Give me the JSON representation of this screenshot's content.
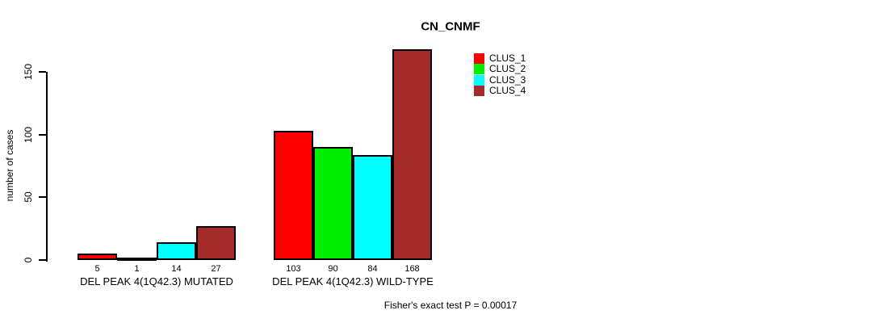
{
  "chart_data": {
    "type": "bar",
    "title": "CN_CNMF",
    "ylabel": "number of cases",
    "xlabel": "",
    "yticks": [
      0,
      50,
      100,
      150
    ],
    "ylim": [
      0,
      168
    ],
    "grid": false,
    "legend_position": "upper-right-inside",
    "categories": [
      "DEL PEAK 4(1Q42.3) MUTATED",
      "DEL PEAK 4(1Q42.3) WILD-TYPE"
    ],
    "series": [
      {
        "name": "CLUS_1",
        "color": "#ff0000",
        "values": [
          5,
          103
        ]
      },
      {
        "name": "CLUS_2",
        "color": "#00ee00",
        "values": [
          1,
          90
        ]
      },
      {
        "name": "CLUS_3",
        "color": "#00ffff",
        "values": [
          14,
          84
        ]
      },
      {
        "name": "CLUS_4",
        "color": "#a52a2a",
        "values": [
          27,
          168
        ]
      }
    ],
    "bar_value_labels": [
      [
        5,
        1,
        14,
        27
      ],
      [
        103,
        90,
        84,
        168
      ]
    ],
    "annotation": "Fisher's exact test P = 0.00017"
  }
}
